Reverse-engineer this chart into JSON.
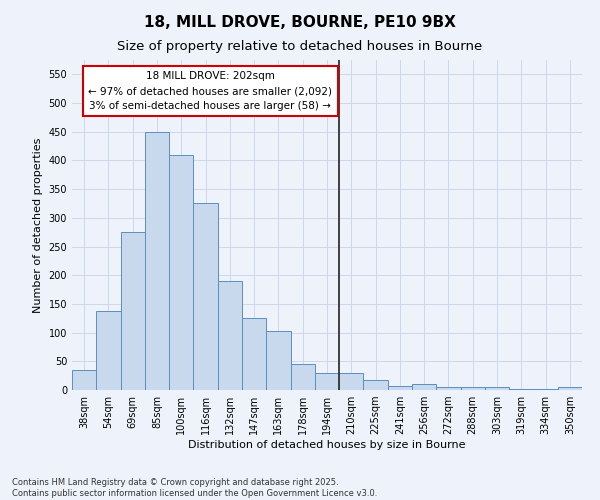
{
  "title": "18, MILL DROVE, BOURNE, PE10 9BX",
  "subtitle": "Size of property relative to detached houses in Bourne",
  "xlabel": "Distribution of detached houses by size in Bourne",
  "ylabel": "Number of detached properties",
  "categories": [
    "38sqm",
    "54sqm",
    "69sqm",
    "85sqm",
    "100sqm",
    "116sqm",
    "132sqm",
    "147sqm",
    "163sqm",
    "178sqm",
    "194sqm",
    "210sqm",
    "225sqm",
    "241sqm",
    "256sqm",
    "272sqm",
    "288sqm",
    "303sqm",
    "319sqm",
    "334sqm",
    "350sqm"
  ],
  "values": [
    35,
    137,
    275,
    450,
    410,
    325,
    190,
    125,
    103,
    46,
    30,
    30,
    17,
    7,
    10,
    5,
    6,
    5,
    2,
    1,
    6
  ],
  "bar_color": "#c8d9ed",
  "bar_edge_color": "#5a8fc2",
  "vline_color": "#333333",
  "annotation_title": "18 MILL DROVE: 202sqm",
  "annotation_line1": "← 97% of detached houses are smaller (2,092)",
  "annotation_line2": "3% of semi-detached houses are larger (58) →",
  "annotation_box_color": "#ffffff",
  "annotation_box_edge_color": "#cc0000",
  "ylim": [
    0,
    575
  ],
  "yticks": [
    0,
    50,
    100,
    150,
    200,
    250,
    300,
    350,
    400,
    450,
    500,
    550
  ],
  "grid_color": "#c8d4e8",
  "background_color": "#eef2fa",
  "footnote": "Contains HM Land Registry data © Crown copyright and database right 2025.\nContains public sector information licensed under the Open Government Licence v3.0.",
  "title_fontsize": 11,
  "subtitle_fontsize": 9.5,
  "axis_label_fontsize": 8,
  "tick_fontsize": 7,
  "annotation_fontsize": 7.5,
  "footnote_fontsize": 6
}
